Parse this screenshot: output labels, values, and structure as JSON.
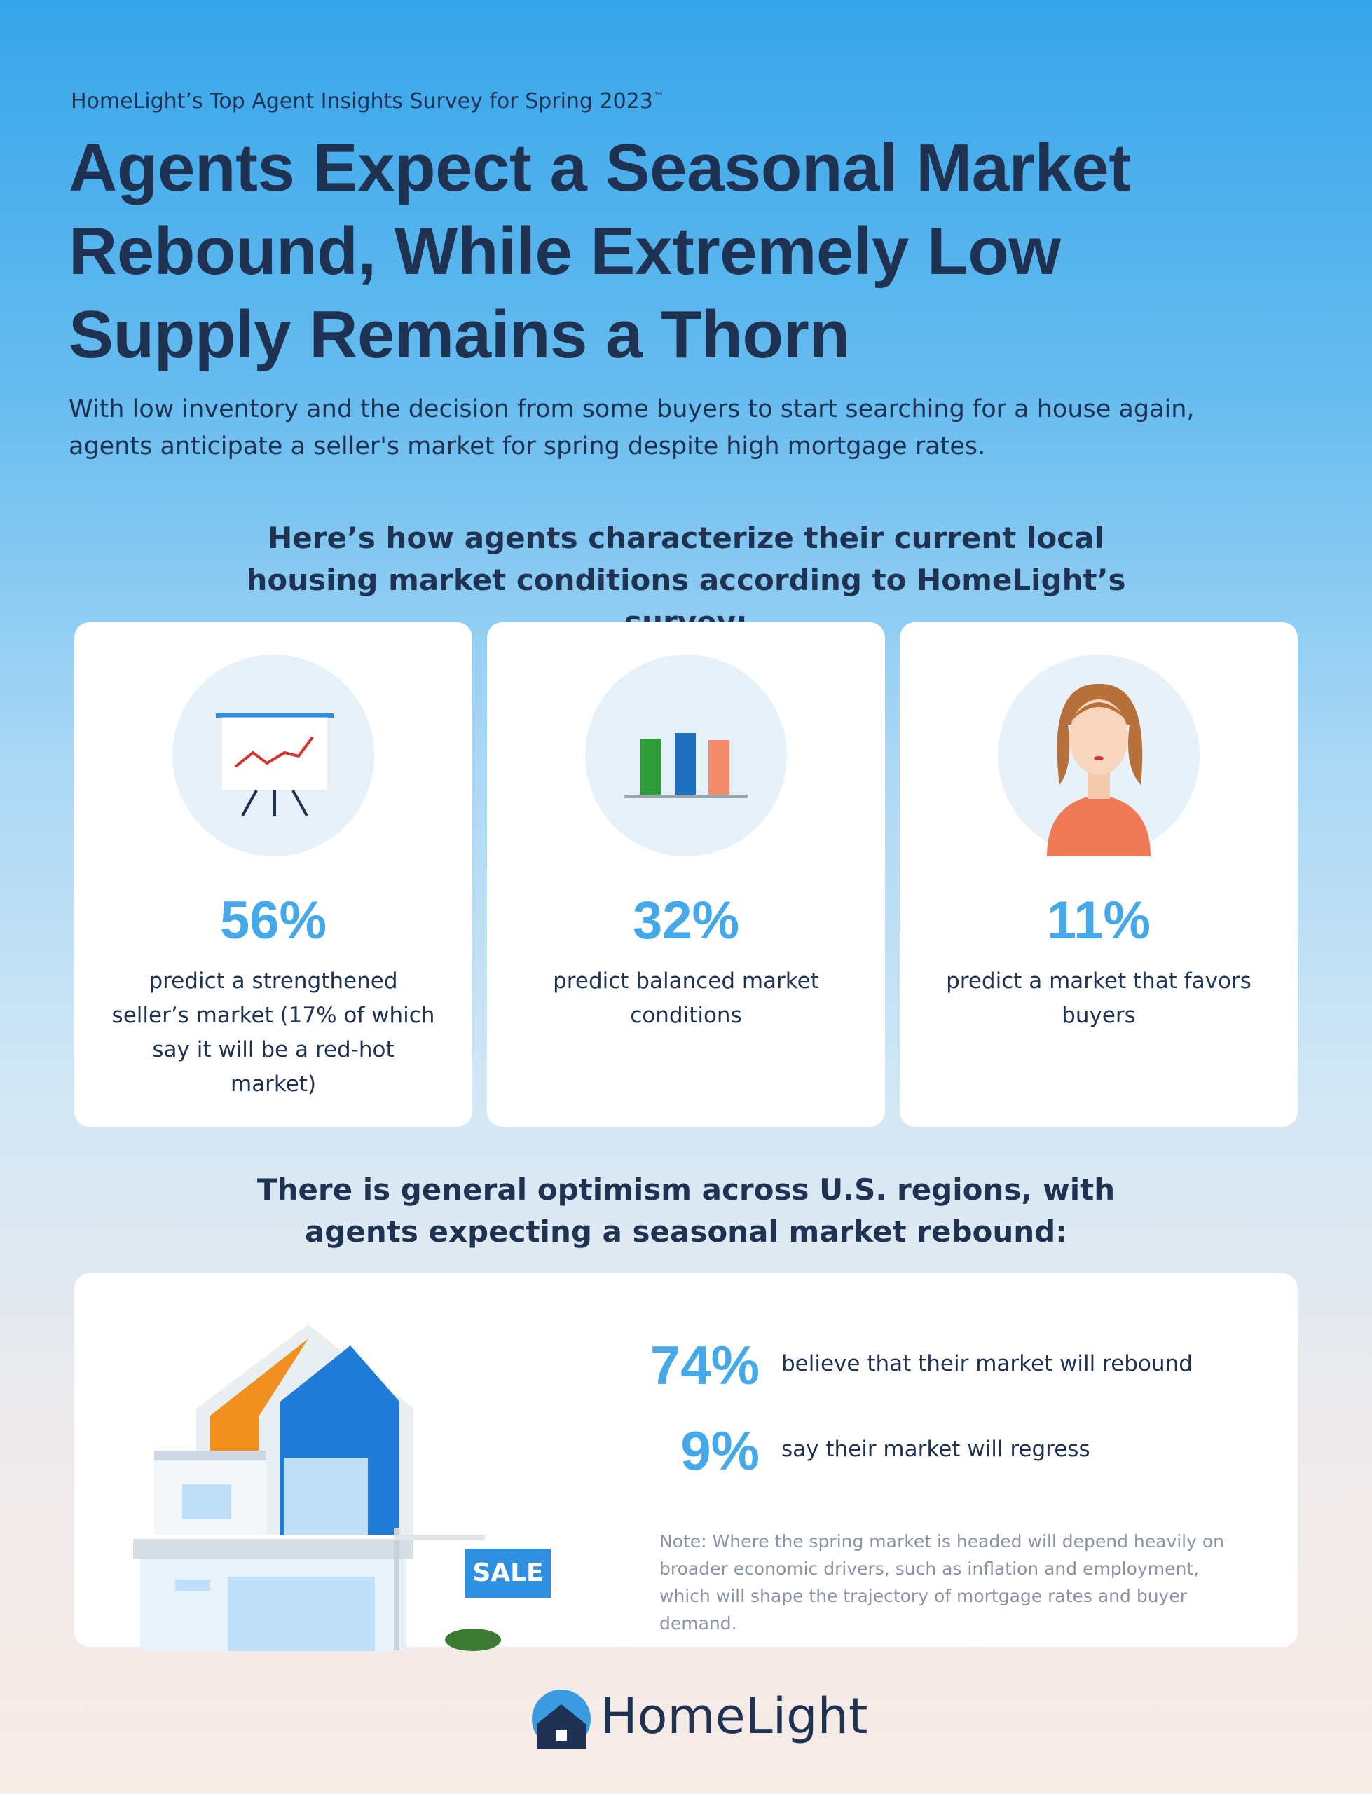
{
  "header": {
    "kicker": "HomeLight’s Top Agent Insights Survey for Spring 2023",
    "trademark": "™",
    "title_lines": [
      "Agents Expect a Seasonal Market",
      "Rebound, While Extremely Low",
      "Supply Remains a Thorn"
    ],
    "subtitle": "With low inventory and the decision from some buyers to start searching for a house again, agents anticipate a seller's market for spring despite high mortgage rates."
  },
  "conditions": {
    "heading": "Here’s how agents characterize their current local housing market conditions according to HomeLight’s survey:",
    "cards": [
      {
        "stat": "56%",
        "text": "predict a strengthened seller’s market (17% of which say it will be a red-hot market)"
      },
      {
        "stat": "32%",
        "text": "predict balanced market conditions"
      },
      {
        "stat": "11%",
        "text": "predict a market that favors buyers"
      }
    ]
  },
  "outlook": {
    "heading": "There is general optimism across U.S. regions, with agents expecting a seasonal market rebound:",
    "stats": [
      {
        "stat": "74%",
        "text": "believe that their market will rebound"
      },
      {
        "stat": "9%",
        "text": "say their market will regress"
      }
    ],
    "sign": "SALE",
    "note": "Note: Where the spring market is headed will depend heavily on broader economic drivers, such as inflation and employment, which will shape the trajectory of mortgage rates and buyer demand."
  },
  "footer": {
    "logo": "HomeLight"
  }
}
